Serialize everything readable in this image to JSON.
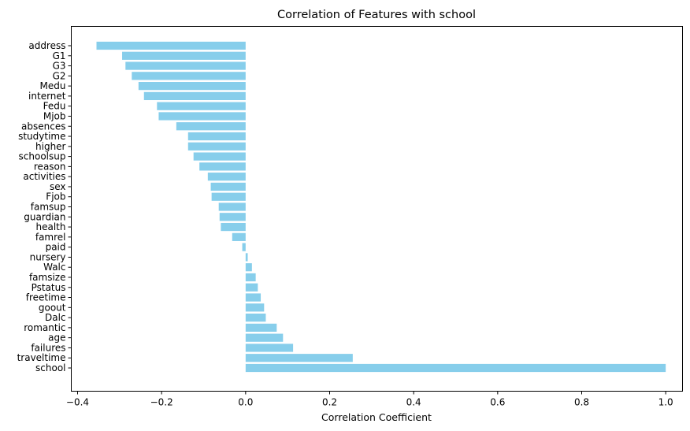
{
  "chart_data": {
    "type": "bar",
    "orientation": "horizontal",
    "title": "Correlation of Features with school",
    "xlabel": "Correlation Coefficient",
    "ylabel": "",
    "xlim": [
      -0.415,
      1.04
    ],
    "xticks": [
      -0.4,
      -0.2,
      0.0,
      0.2,
      0.4,
      0.6,
      0.8,
      1.0
    ],
    "xtick_labels": [
      "−0.4",
      "−0.2",
      "0.0",
      "0.2",
      "0.4",
      "0.6",
      "0.8",
      "1.0"
    ],
    "grid": false,
    "bar_color": "#87ceeb",
    "categories": [
      "address",
      "G1",
      "G3",
      "G2",
      "Medu",
      "internet",
      "Fedu",
      "Mjob",
      "absences",
      "studytime",
      "higher",
      "schoolsup",
      "reason",
      "activities",
      "sex",
      "Fjob",
      "famsup",
      "guardian",
      "health",
      "famrel",
      "paid",
      "nursery",
      "Walc",
      "famsize",
      "Pstatus",
      "freetime",
      "goout",
      "Dalc",
      "romantic",
      "age",
      "failures",
      "traveltime",
      "school"
    ],
    "values": [
      -0.355,
      -0.294,
      -0.286,
      -0.271,
      -0.255,
      -0.242,
      -0.211,
      -0.207,
      -0.165,
      -0.137,
      -0.137,
      -0.124,
      -0.11,
      -0.09,
      -0.083,
      -0.081,
      -0.064,
      -0.062,
      -0.059,
      -0.032,
      -0.008,
      0.005,
      0.015,
      0.024,
      0.029,
      0.036,
      0.044,
      0.048,
      0.074,
      0.089,
      0.113,
      0.255,
      1.0
    ]
  }
}
